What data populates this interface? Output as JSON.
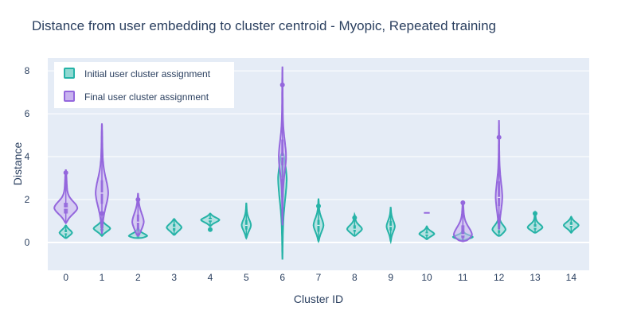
{
  "chart_data": {
    "type": "violin",
    "title": "Distance from user embedding to cluster centroid - Myopic, Repeated training",
    "xlabel": "Cluster ID",
    "ylabel": "Distance",
    "categories": [
      "0",
      "1",
      "2",
      "3",
      "4",
      "5",
      "6",
      "7",
      "8",
      "9",
      "10",
      "11",
      "12",
      "13",
      "14"
    ],
    "ylim": [
      -1.3,
      8.6
    ],
    "yticks": [
      0,
      2,
      4,
      6,
      8
    ],
    "legend_position": "top-left",
    "background": "#e5ecf6",
    "series": [
      {
        "name": "Initial user cluster assignment",
        "color": "#26b3a7",
        "fill": "#8fd9d2",
        "violins": [
          {
            "cat": "0",
            "min": 0.2,
            "q1": 0.35,
            "median": 0.45,
            "q3": 0.6,
            "max": 0.8,
            "halfwidth": 0.38,
            "outliers": []
          },
          {
            "cat": "1",
            "min": 0.3,
            "q1": 0.55,
            "median": 0.65,
            "q3": 0.8,
            "max": 1.1,
            "halfwidth": 0.5,
            "outliers": []
          },
          {
            "cat": "2",
            "min": 0.2,
            "q1": 0.25,
            "median": 0.3,
            "q3": 0.45,
            "max": 0.7,
            "halfwidth": 0.55,
            "outliers": []
          },
          {
            "cat": "3",
            "min": 0.35,
            "q1": 0.55,
            "median": 0.7,
            "q3": 0.85,
            "max": 1.1,
            "halfwidth": 0.45,
            "outliers": []
          },
          {
            "cat": "4",
            "min": 0.75,
            "q1": 0.95,
            "median": 1.05,
            "q3": 1.15,
            "max": 1.35,
            "halfwidth": 0.55,
            "outliers": [
              0.6
            ]
          },
          {
            "cat": "5",
            "min": 0.2,
            "q1": 0.6,
            "median": 0.8,
            "q3": 1.05,
            "max": 1.85,
            "halfwidth": 0.28,
            "outliers": []
          },
          {
            "cat": "6",
            "min": -0.8,
            "q1": 2.1,
            "median": 3.0,
            "q3": 3.8,
            "max": 4.2,
            "halfwidth": 0.26,
            "outliers": []
          },
          {
            "cat": "7",
            "min": 0.05,
            "q1": 0.5,
            "median": 0.8,
            "q3": 1.05,
            "max": 2.05,
            "halfwidth": 0.3,
            "outliers": [
              1.7
            ]
          },
          {
            "cat": "8",
            "min": 0.3,
            "q1": 0.5,
            "median": 0.62,
            "q3": 0.8,
            "max": 1.3,
            "halfwidth": 0.45,
            "outliers": [
              1.15
            ]
          },
          {
            "cat": "9",
            "min": 0.05,
            "q1": 0.55,
            "median": 0.75,
            "q3": 1.0,
            "max": 1.65,
            "halfwidth": 0.25,
            "outliers": []
          },
          {
            "cat": "10",
            "min": 0.15,
            "q1": 0.3,
            "median": 0.4,
            "q3": 0.5,
            "max": 0.75,
            "halfwidth": 0.45,
            "outliers": []
          },
          {
            "cat": "11",
            "min": 0.1,
            "q1": 0.2,
            "median": 0.25,
            "q3": 0.35,
            "max": 0.6,
            "halfwidth": 0.6,
            "outliers": []
          },
          {
            "cat": "12",
            "min": 0.3,
            "q1": 0.45,
            "median": 0.6,
            "q3": 0.8,
            "max": 1.3,
            "halfwidth": 0.4,
            "outliers": []
          },
          {
            "cat": "13",
            "min": 0.45,
            "q1": 0.6,
            "median": 0.7,
            "q3": 0.85,
            "max": 1.4,
            "halfwidth": 0.45,
            "outliers": [
              1.35
            ]
          },
          {
            "cat": "14",
            "min": 0.45,
            "q1": 0.7,
            "median": 0.8,
            "q3": 0.95,
            "max": 1.2,
            "halfwidth": 0.45,
            "outliers": []
          }
        ]
      },
      {
        "name": "Final user cluster assignment",
        "color": "#9467dd",
        "fill": "#c8b3ef",
        "violins": [
          {
            "cat": "0",
            "min": 0.9,
            "q1": 1.35,
            "median": 1.6,
            "q3": 1.85,
            "max": 3.4,
            "halfwidth": 0.7,
            "outliers": [
              3.25
            ]
          },
          {
            "cat": "1",
            "min": 0.4,
            "q1": 1.8,
            "median": 2.3,
            "q3": 2.9,
            "max": 5.55,
            "halfwidth": 0.38,
            "outliers": [
              1.35
            ]
          },
          {
            "cat": "2",
            "min": 0.3,
            "q1": 0.6,
            "median": 0.95,
            "q3": 1.3,
            "max": 2.3,
            "halfwidth": 0.35,
            "outliers": [
              2.0
            ]
          },
          {
            "cat": "6",
            "min": 0.8,
            "q1": 3.6,
            "median": 4.0,
            "q3": 4.8,
            "max": 8.2,
            "halfwidth": 0.22,
            "outliers": [
              7.35
            ]
          },
          {
            "cat": "10",
            "min": 1.38,
            "q1": 1.38,
            "median": 1.38,
            "q3": 1.38,
            "max": 1.38,
            "halfwidth": 0.35,
            "outliers": []
          },
          {
            "cat": "11",
            "min": 0.05,
            "q1": 0.2,
            "median": 0.35,
            "q3": 0.8,
            "max": 1.95,
            "halfwidth": 0.55,
            "outliers": [
              1.85
            ]
          },
          {
            "cat": "12",
            "min": 0.6,
            "q1": 1.7,
            "median": 2.1,
            "q3": 2.85,
            "max": 5.7,
            "halfwidth": 0.2,
            "outliers": [
              4.9
            ]
          }
        ]
      }
    ]
  }
}
